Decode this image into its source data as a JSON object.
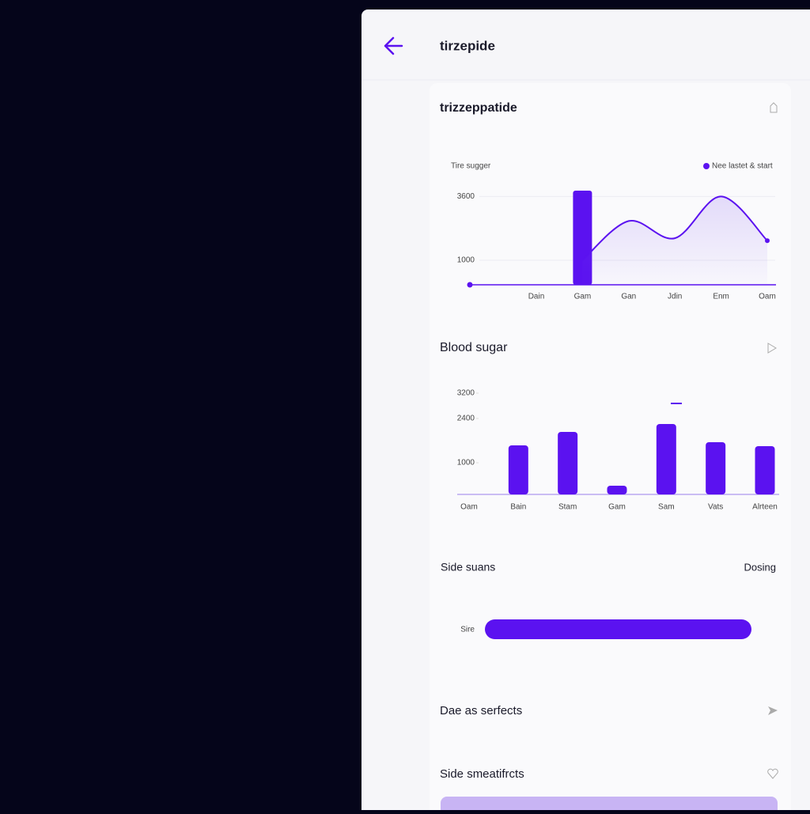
{
  "header": {
    "title": "tirzepide"
  },
  "sections": [
    {
      "title": "trizzeppatide",
      "chart": {
        "type": "bar_line",
        "axis_label": "Tire sugger",
        "categories": [
          "Dain",
          "Gam",
          "Gan",
          "Jdin",
          "Enm",
          "Oam"
        ],
        "ylim": [
          0,
          4000
        ],
        "yticks": [
          1000,
          3600
        ],
        "grid": true,
        "series": [
          {
            "type": "bar",
            "color": "#5b12f0",
            "values": [
              null,
              3840,
              null,
              null,
              null,
              null
            ]
          },
          {
            "type": "line",
            "name": "Nee lastet & start",
            "color": "#5b12f0",
            "values": [
              null,
              1000,
              2600,
              1900,
              3600,
              1800
            ]
          }
        ]
      }
    },
    {
      "title": "Blood sugar",
      "chart": {
        "type": "bar",
        "categories": [
          "Oam",
          "Bain",
          "Stam",
          "Gam",
          "Sam",
          "Vats",
          "Alrteen"
        ],
        "values": [
          null,
          1550,
          1975,
          275,
          2225,
          1650,
          1525
        ],
        "color": "#5b12f0",
        "ylim": [
          0,
          4000
        ],
        "yticks": [
          1000,
          2400,
          3200
        ]
      }
    },
    {
      "title": "Side suans",
      "action": "Dosing",
      "bar_label": "Sire"
    },
    {
      "title": "Dae as serfects"
    },
    {
      "title": "Side smeatifrcts"
    }
  ]
}
